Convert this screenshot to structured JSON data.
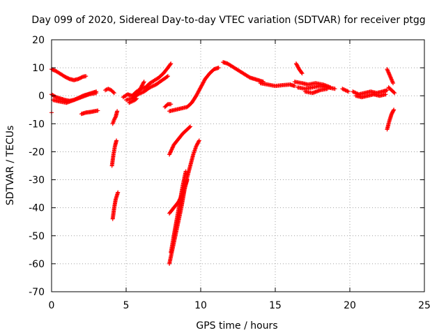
{
  "chart_data": {
    "type": "scatter",
    "title": "Day 099 of 2020, Sidereal Day-to-day VTEC variation (SDTVAR) for receiver ptgg",
    "xlabel": "GPS time / hours",
    "ylabel": "SDTVAR / TECUs",
    "xlim": [
      0,
      25
    ],
    "ylim": [
      -70,
      20
    ],
    "xticks": [
      0,
      5,
      10,
      15,
      20,
      25
    ],
    "xtick_labels": [
      "0",
      "5",
      "10",
      "15",
      "20",
      "25"
    ],
    "yticks": [
      20,
      10,
      0,
      -10,
      -20,
      -30,
      -40,
      -50,
      -60,
      -70
    ],
    "ytick_labels": [
      "20",
      "10",
      "0",
      "-10",
      "-20",
      "-30",
      "-40",
      "-50",
      "-60",
      "-70"
    ],
    "grid": true,
    "marker": "+",
    "color": "#ff0000",
    "segments": [
      {
        "name": "early-high-arc",
        "x": [
          0.0,
          0.3,
          0.6,
          0.9,
          1.2,
          1.5,
          1.8,
          2.1,
          2.3
        ],
        "y": [
          9.5,
          8.8,
          7.8,
          6.8,
          6.0,
          5.6,
          6.0,
          6.8,
          7.0
        ]
      },
      {
        "name": "early-zero-band",
        "x": [
          0.0,
          0.3,
          0.6,
          0.9,
          1.2,
          1.5,
          1.8,
          2.1,
          2.4,
          2.7,
          3.0
        ],
        "y": [
          0.5,
          -0.5,
          -1.0,
          -1.5,
          -1.8,
          -1.5,
          -0.8,
          0.0,
          0.5,
          1.0,
          1.5
        ]
      },
      {
        "name": "early-zero-band-2",
        "x": [
          0.1,
          0.5,
          1.0,
          1.5,
          2.0,
          2.5,
          3.0
        ],
        "y": [
          -1.5,
          -2.0,
          -2.5,
          -1.5,
          -0.5,
          0.5,
          1.0
        ]
      },
      {
        "name": "early-negative",
        "x": [
          2.0,
          2.3,
          2.6,
          2.9,
          3.1
        ],
        "y": [
          -6.5,
          -6.0,
          -5.8,
          -5.5,
          -5.3
        ]
      },
      {
        "name": "outlier-start",
        "x": [
          0.0
        ],
        "y": [
          -6.0
        ]
      },
      {
        "name": "pre-dip-cluster",
        "x": [
          3.6,
          3.8,
          4.0,
          4.2
        ],
        "y": [
          2.0,
          2.5,
          2.0,
          1.0
        ]
      },
      {
        "name": "dip-4h-top",
        "x": [
          4.1,
          4.2,
          4.3,
          4.4
        ],
        "y": [
          -10.0,
          -8.5,
          -7.5,
          -5.5
        ]
      },
      {
        "name": "dip-4h-mid",
        "x": [
          4.05,
          4.15,
          4.25,
          4.35
        ],
        "y": [
          -25.0,
          -21.0,
          -18.0,
          -16.0
        ]
      },
      {
        "name": "dip-4h-low",
        "x": [
          4.1,
          4.2,
          4.3,
          4.45
        ],
        "y": [
          -44.0,
          -40.0,
          -37.0,
          -34.5
        ]
      },
      {
        "name": "ramp-5-8",
        "x": [
          4.8,
          5.1,
          5.4,
          5.7,
          6.0,
          6.3,
          6.6,
          6.9,
          7.2,
          7.5,
          7.8,
          8.0
        ],
        "y": [
          -0.5,
          0.5,
          0.0,
          1.5,
          2.5,
          3.0,
          4.5,
          5.5,
          6.5,
          8.0,
          10.0,
          11.5
        ]
      },
      {
        "name": "ramp-5-8-b",
        "x": [
          5.0,
          5.4,
          5.8,
          6.2,
          6.6,
          7.0,
          7.4,
          7.8
        ],
        "y": [
          -1.5,
          -1.0,
          0.5,
          1.5,
          3.0,
          4.0,
          5.5,
          7.0
        ]
      },
      {
        "name": "branch-6h",
        "x": [
          5.5,
          5.8,
          6.0,
          6.2
        ],
        "y": [
          -1.0,
          1.0,
          3.0,
          5.0
        ]
      },
      {
        "name": "lower-branch-5h",
        "x": [
          5.2,
          5.4,
          5.6,
          5.7
        ],
        "y": [
          -2.5,
          -2.0,
          -1.5,
          -1.0
        ]
      },
      {
        "name": "pair-7-8h",
        "x": [
          7.6,
          7.8,
          8.0
        ],
        "y": [
          -4.0,
          -3.0,
          -3.0
        ]
      },
      {
        "name": "deep-dip-main",
        "x": [
          7.9,
          8.1,
          8.3,
          8.5,
          8.7,
          8.9,
          9.1,
          9.3,
          9.5,
          9.7,
          9.9
        ],
        "y": [
          -60.0,
          -55.0,
          -50.0,
          -45.0,
          -40.0,
          -34.0,
          -29.0,
          -25.0,
          -21.0,
          -18.0,
          -16.0
        ]
      },
      {
        "name": "deep-dip-upper",
        "x": [
          7.9,
          8.2,
          8.5,
          8.8,
          9.1
        ],
        "y": [
          -42.0,
          -40.0,
          -38.0,
          -35.0,
          -30.0
        ]
      },
      {
        "name": "deep-dip-mid",
        "x": [
          8.0,
          8.2,
          8.4,
          8.6,
          8.8,
          9.0
        ],
        "y": [
          -56.0,
          -50.0,
          -44.0,
          -38.0,
          -32.0,
          -27.0
        ]
      },
      {
        "name": "dip-rise-upper",
        "x": [
          7.9,
          8.2,
          8.5,
          8.8,
          9.1,
          9.3
        ],
        "y": [
          -21.0,
          -17.5,
          -15.5,
          -13.5,
          -12.0,
          -11.0
        ]
      },
      {
        "name": "recovery-9-11",
        "x": [
          7.9,
          8.3,
          8.7,
          9.1,
          9.4,
          9.7,
          10.0,
          10.3,
          10.6,
          10.9,
          11.2
        ],
        "y": [
          -5.5,
          -5.0,
          -4.5,
          -4.0,
          -2.5,
          0.0,
          3.0,
          6.0,
          8.0,
          9.5,
          10.0
        ]
      },
      {
        "name": "peak-11-14",
        "x": [
          11.5,
          11.8,
          12.1,
          12.4,
          12.7,
          13.0,
          13.3,
          13.6,
          13.9,
          14.2
        ],
        "y": [
          12.0,
          11.5,
          10.5,
          9.5,
          8.5,
          7.5,
          6.5,
          6.0,
          5.5,
          5.0
        ]
      },
      {
        "name": "plateau-14-16",
        "x": [
          14.0,
          14.5,
          15.0,
          15.5,
          16.0,
          16.3
        ],
        "y": [
          4.5,
          4.0,
          3.5,
          3.8,
          4.0,
          3.5
        ]
      },
      {
        "name": "spike-16.5",
        "x": [
          16.4,
          16.6,
          16.8
        ],
        "y": [
          11.5,
          9.5,
          8.0
        ]
      },
      {
        "name": "band-16-19",
        "x": [
          16.5,
          17.0,
          17.5,
          18.0,
          18.5,
          19.0
        ],
        "y": [
          3.0,
          2.5,
          3.0,
          3.5,
          3.0,
          2.5
        ]
      },
      {
        "name": "band-16-19-b",
        "x": [
          16.3,
          16.8,
          17.2,
          17.7,
          18.2,
          18.7
        ],
        "y": [
          5.0,
          4.5,
          4.0,
          4.5,
          4.0,
          3.0
        ]
      },
      {
        "name": "band-16-19-c",
        "x": [
          17.0,
          17.5,
          18.0,
          18.5
        ],
        "y": [
          1.5,
          1.0,
          2.0,
          2.5
        ]
      },
      {
        "name": "band-19-20",
        "x": [
          19.5,
          19.7,
          19.9
        ],
        "y": [
          2.5,
          2.0,
          1.5
        ]
      },
      {
        "name": "band-20-22.5",
        "x": [
          20.2,
          20.6,
          21.0,
          21.4,
          21.8,
          22.2,
          22.5
        ],
        "y": [
          1.5,
          0.5,
          1.0,
          1.5,
          1.0,
          1.5,
          2.0
        ]
      },
      {
        "name": "band-20-22.5-b",
        "x": [
          20.4,
          20.8,
          21.2,
          21.6,
          22.0,
          22.4
        ],
        "y": [
          0.0,
          -0.5,
          0.0,
          0.5,
          0.0,
          0.5
        ]
      },
      {
        "name": "end-high",
        "x": [
          22.5,
          22.7,
          22.9
        ],
        "y": [
          9.5,
          7.0,
          4.5
        ]
      },
      {
        "name": "end-low",
        "x": [
          22.5,
          22.65,
          22.8,
          22.95
        ],
        "y": [
          -12.0,
          -9.0,
          -6.5,
          -5.0
        ]
      },
      {
        "name": "end-mid",
        "x": [
          22.6,
          22.8,
          23.0
        ],
        "y": [
          3.0,
          2.0,
          1.0
        ]
      }
    ]
  }
}
